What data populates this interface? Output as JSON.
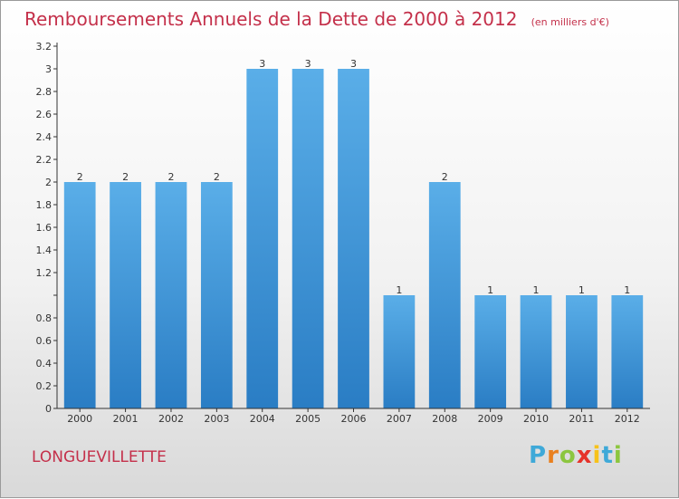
{
  "header": {
    "title": "Remboursements Annuels de la Dette de 2000 à 2012",
    "subtitle": "(en milliers d'€)"
  },
  "footer": {
    "commune": "LONGUEVILLETTE",
    "logo_text": "Proxiti"
  },
  "colors": {
    "title": "#c4304a",
    "bar_top": "#5aaee8",
    "bar_bottom": "#2a7dc4",
    "axis": "#333333"
  },
  "chart_data": {
    "type": "bar",
    "title": "Remboursements Annuels de la Dette de 2000 à 2012",
    "subtitle": "(en milliers d'€)",
    "categories": [
      "2000",
      "2001",
      "2002",
      "2003",
      "2004",
      "2005",
      "2006",
      "2007",
      "2008",
      "2009",
      "2010",
      "2011",
      "2012"
    ],
    "values": [
      2,
      2,
      2,
      2,
      3,
      3,
      3,
      1,
      2,
      1,
      1,
      1,
      1
    ],
    "data_labels": [
      "2",
      "2",
      "2",
      "2",
      "3",
      "3",
      "3",
      "1",
      "2",
      "1",
      "1",
      "1",
      "1"
    ],
    "yticks": [
      0,
      0.2,
      0.4,
      0.6,
      0.8,
      1,
      1.2,
      1.4,
      1.6,
      1.8,
      2,
      2.2,
      2.4,
      2.6,
      2.8,
      3,
      3.2
    ],
    "ytick_labels": [
      "0",
      "0.2",
      "0.4",
      "0.6",
      "0.8",
      "",
      "1.2",
      "1.4",
      "1.6",
      "1.8",
      "2",
      "2.2",
      "2.4",
      "2.6",
      "2.8",
      "3",
      "3.2"
    ],
    "ylim": [
      0,
      3.2
    ],
    "xlabel": "",
    "ylabel": "",
    "grid": false,
    "legend": "none"
  }
}
